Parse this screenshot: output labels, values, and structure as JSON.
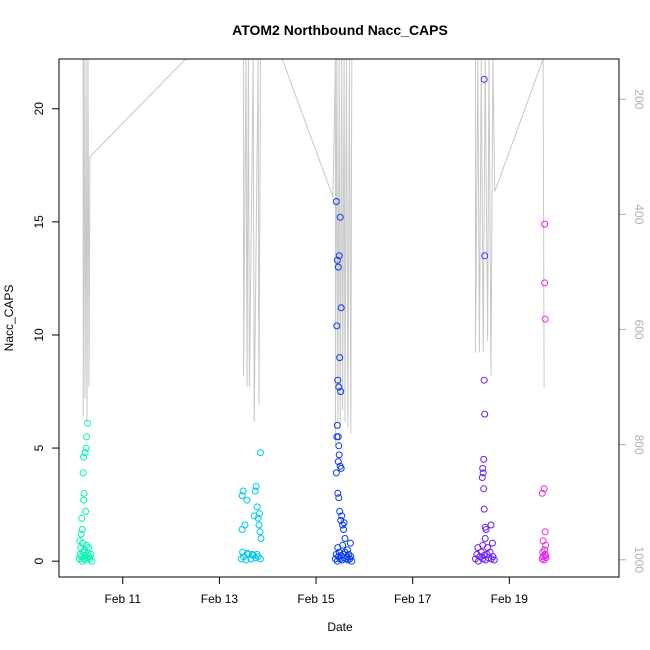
{
  "chart_data": {
    "type": "scatter",
    "title": "ATOM2 Northbound Nacc_CAPS",
    "xlabel": "Date",
    "ylabel": "Nacc_CAPS",
    "x_unit": "days in February",
    "xlim": [
      9.68,
      21.27
    ],
    "ylim": [
      -0.7,
      22.2
    ],
    "x_ticks": [
      {
        "value": 11,
        "label": "Feb 11"
      },
      {
        "value": 13,
        "label": "Feb 13"
      },
      {
        "value": 15,
        "label": "Feb 15"
      },
      {
        "value": 17,
        "label": "Feb 17"
      },
      {
        "value": 19,
        "label": "Feb 19"
      }
    ],
    "y_ticks": [
      0,
      5,
      10,
      15,
      20
    ],
    "y2_label": "",
    "y2_range": [
      1030,
      130
    ],
    "y2_inverted": true,
    "y2_ticks": [
      200,
      400,
      600,
      800,
      1000
    ],
    "depth_trace_color": "#c8c8c8",
    "grid": false,
    "legend": "none",
    "depth_trace": [
      {
        "x": 10.18,
        "y": 130
      },
      {
        "x": 10.18,
        "y": 750
      },
      {
        "x": 10.2,
        "y": 130
      },
      {
        "x": 10.22,
        "y": 720
      },
      {
        "x": 10.24,
        "y": 130
      },
      {
        "x": 10.26,
        "y": 760
      },
      {
        "x": 10.28,
        "y": 130
      },
      {
        "x": 10.3,
        "y": 700
      },
      {
        "x": 10.32,
        "y": 300
      },
      {
        "x": 12.3,
        "y": 130
      },
      {
        "x": 13.5,
        "y": 130
      },
      {
        "x": 13.5,
        "y": 680
      },
      {
        "x": 13.55,
        "y": 130
      },
      {
        "x": 13.57,
        "y": 700
      },
      {
        "x": 13.6,
        "y": 130
      },
      {
        "x": 13.62,
        "y": 700
      },
      {
        "x": 13.7,
        "y": 130
      },
      {
        "x": 13.72,
        "y": 760
      },
      {
        "x": 13.8,
        "y": 130
      },
      {
        "x": 13.82,
        "y": 730
      },
      {
        "x": 13.85,
        "y": 130
      },
      {
        "x": 14.3,
        "y": 130
      },
      {
        "x": 15.35,
        "y": 370
      },
      {
        "x": 15.4,
        "y": 130
      },
      {
        "x": 15.4,
        "y": 800
      },
      {
        "x": 15.43,
        "y": 130
      },
      {
        "x": 15.45,
        "y": 760
      },
      {
        "x": 15.48,
        "y": 130
      },
      {
        "x": 15.5,
        "y": 770
      },
      {
        "x": 15.53,
        "y": 130
      },
      {
        "x": 15.55,
        "y": 740
      },
      {
        "x": 15.58,
        "y": 130
      },
      {
        "x": 15.6,
        "y": 760
      },
      {
        "x": 15.63,
        "y": 130
      },
      {
        "x": 15.66,
        "y": 770
      },
      {
        "x": 15.69,
        "y": 130
      },
      {
        "x": 15.72,
        "y": 780
      },
      {
        "x": 15.74,
        "y": 130
      },
      {
        "x": 18.3,
        "y": 130
      },
      {
        "x": 18.3,
        "y": 640
      },
      {
        "x": 18.35,
        "y": 130
      },
      {
        "x": 18.38,
        "y": 640
      },
      {
        "x": 18.42,
        "y": 130
      },
      {
        "x": 18.46,
        "y": 640
      },
      {
        "x": 18.5,
        "y": 130
      },
      {
        "x": 18.55,
        "y": 620
      },
      {
        "x": 18.58,
        "y": 130
      },
      {
        "x": 18.62,
        "y": 680
      },
      {
        "x": 18.66,
        "y": 130
      },
      {
        "x": 18.7,
        "y": 360
      },
      {
        "x": 19.7,
        "y": 130
      },
      {
        "x": 19.72,
        "y": 700
      }
    ],
    "series": [
      {
        "color": "#00f5b5",
        "points": [
          {
            "x": 10.1,
            "y": 0.1
          },
          {
            "x": 10.12,
            "y": 0.3
          },
          {
            "x": 10.14,
            "y": 0.2
          },
          {
            "x": 10.16,
            "y": 0.0
          },
          {
            "x": 10.18,
            "y": 0.4
          },
          {
            "x": 10.2,
            "y": 0.1
          },
          {
            "x": 10.22,
            "y": 0.25
          },
          {
            "x": 10.24,
            "y": 0.05
          },
          {
            "x": 10.26,
            "y": 0.15
          },
          {
            "x": 10.28,
            "y": 0.35
          },
          {
            "x": 10.3,
            "y": 0.2
          },
          {
            "x": 10.32,
            "y": 0.1
          },
          {
            "x": 10.34,
            "y": 0.3
          },
          {
            "x": 10.36,
            "y": 0.0
          },
          {
            "x": 10.13,
            "y": 0.6
          },
          {
            "x": 10.17,
            "y": 0.8
          },
          {
            "x": 10.21,
            "y": 0.5
          },
          {
            "x": 10.25,
            "y": 0.7
          },
          {
            "x": 10.29,
            "y": 0.6
          },
          {
            "x": 10.11,
            "y": 0.9
          },
          {
            "x": 10.14,
            "y": 1.2
          },
          {
            "x": 10.16,
            "y": 1.4
          },
          {
            "x": 10.19,
            "y": 2.7
          },
          {
            "x": 10.2,
            "y": 3.0
          },
          {
            "x": 10.23,
            "y": 2.2
          },
          {
            "x": 10.18,
            "y": 3.9
          },
          {
            "x": 10.19,
            "y": 4.6
          },
          {
            "x": 10.24,
            "y": 5.0
          },
          {
            "x": 10.25,
            "y": 5.5
          },
          {
            "x": 10.27,
            "y": 6.1
          },
          {
            "x": 10.22,
            "y": 4.8
          },
          {
            "x": 10.15,
            "y": 1.9
          }
        ]
      },
      {
        "color": "#00c8f0",
        "points": [
          {
            "x": 13.45,
            "y": 0.1
          },
          {
            "x": 13.5,
            "y": 0.2
          },
          {
            "x": 13.55,
            "y": 0.05
          },
          {
            "x": 13.6,
            "y": 0.3
          },
          {
            "x": 13.65,
            "y": 0.1
          },
          {
            "x": 13.7,
            "y": 0.25
          },
          {
            "x": 13.75,
            "y": 0.15
          },
          {
            "x": 13.8,
            "y": 0.2
          },
          {
            "x": 13.85,
            "y": 0.1
          },
          {
            "x": 13.48,
            "y": 0.4
          },
          {
            "x": 13.58,
            "y": 0.35
          },
          {
            "x": 13.68,
            "y": 0.3
          },
          {
            "x": 13.78,
            "y": 0.3
          },
          {
            "x": 13.47,
            "y": 1.4
          },
          {
            "x": 13.53,
            "y": 1.6
          },
          {
            "x": 13.47,
            "y": 2.9
          },
          {
            "x": 13.49,
            "y": 3.1
          },
          {
            "x": 13.57,
            "y": 2.7
          },
          {
            "x": 13.72,
            "y": 2.0
          },
          {
            "x": 13.74,
            "y": 3.1
          },
          {
            "x": 13.76,
            "y": 3.3
          },
          {
            "x": 13.78,
            "y": 2.4
          },
          {
            "x": 13.8,
            "y": 1.9
          },
          {
            "x": 13.82,
            "y": 1.6
          },
          {
            "x": 13.83,
            "y": 2.1
          },
          {
            "x": 13.84,
            "y": 1.3
          },
          {
            "x": 13.85,
            "y": 4.8
          },
          {
            "x": 13.86,
            "y": 1.0
          }
        ]
      },
      {
        "color": "#0a3cf0",
        "points": [
          {
            "x": 15.4,
            "y": 0.1
          },
          {
            "x": 15.42,
            "y": 0.3
          },
          {
            "x": 15.44,
            "y": 0.0
          },
          {
            "x": 15.46,
            "y": 0.2
          },
          {
            "x": 15.48,
            "y": 0.4
          },
          {
            "x": 15.5,
            "y": 0.1
          },
          {
            "x": 15.52,
            "y": 0.25
          },
          {
            "x": 15.54,
            "y": 0.05
          },
          {
            "x": 15.56,
            "y": 0.3
          },
          {
            "x": 15.58,
            "y": 0.15
          },
          {
            "x": 15.6,
            "y": 0.4
          },
          {
            "x": 15.62,
            "y": 0.1
          },
          {
            "x": 15.64,
            "y": 0.2
          },
          {
            "x": 15.66,
            "y": 0.05
          },
          {
            "x": 15.68,
            "y": 0.3
          },
          {
            "x": 15.7,
            "y": 0.1
          },
          {
            "x": 15.72,
            "y": 0.2
          },
          {
            "x": 15.74,
            "y": 0.0
          },
          {
            "x": 15.45,
            "y": 0.6
          },
          {
            "x": 15.55,
            "y": 0.7
          },
          {
            "x": 15.65,
            "y": 0.5
          },
          {
            "x": 15.71,
            "y": 0.8
          },
          {
            "x": 15.6,
            "y": 1.0
          },
          {
            "x": 15.42,
            "y": 15.9
          },
          {
            "x": 15.44,
            "y": 13.3
          },
          {
            "x": 15.46,
            "y": 13.0
          },
          {
            "x": 15.48,
            "y": 13.5
          },
          {
            "x": 15.5,
            "y": 15.2
          },
          {
            "x": 15.52,
            "y": 11.2
          },
          {
            "x": 15.43,
            "y": 10.4
          },
          {
            "x": 15.49,
            "y": 9.0
          },
          {
            "x": 15.45,
            "y": 8.0
          },
          {
            "x": 15.47,
            "y": 7.7
          },
          {
            "x": 15.51,
            "y": 7.5
          },
          {
            "x": 15.44,
            "y": 6.0
          },
          {
            "x": 15.46,
            "y": 5.5
          },
          {
            "x": 15.43,
            "y": 5.5
          },
          {
            "x": 15.47,
            "y": 5.1
          },
          {
            "x": 15.48,
            "y": 4.7
          },
          {
            "x": 15.46,
            "y": 4.4
          },
          {
            "x": 15.5,
            "y": 4.2
          },
          {
            "x": 15.52,
            "y": 4.1
          },
          {
            "x": 15.42,
            "y": 3.9
          },
          {
            "x": 15.45,
            "y": 3.0
          },
          {
            "x": 15.47,
            "y": 2.8
          },
          {
            "x": 15.49,
            "y": 2.2
          },
          {
            "x": 15.51,
            "y": 1.8
          },
          {
            "x": 15.53,
            "y": 2.0
          },
          {
            "x": 15.55,
            "y": 1.6
          },
          {
            "x": 15.57,
            "y": 1.4
          },
          {
            "x": 15.58,
            "y": 1.7
          }
        ]
      },
      {
        "color": "#6a1ef5",
        "points": [
          {
            "x": 18.3,
            "y": 0.1
          },
          {
            "x": 18.33,
            "y": 0.3
          },
          {
            "x": 18.36,
            "y": 0.0
          },
          {
            "x": 18.39,
            "y": 0.2
          },
          {
            "x": 18.42,
            "y": 0.4
          },
          {
            "x": 18.45,
            "y": 0.1
          },
          {
            "x": 18.48,
            "y": 0.25
          },
          {
            "x": 18.51,
            "y": 0.05
          },
          {
            "x": 18.54,
            "y": 0.3
          },
          {
            "x": 18.57,
            "y": 0.15
          },
          {
            "x": 18.6,
            "y": 0.4
          },
          {
            "x": 18.63,
            "y": 0.1
          },
          {
            "x": 18.66,
            "y": 0.2
          },
          {
            "x": 18.69,
            "y": 0.05
          },
          {
            "x": 18.35,
            "y": 0.6
          },
          {
            "x": 18.45,
            "y": 0.7
          },
          {
            "x": 18.55,
            "y": 0.6
          },
          {
            "x": 18.65,
            "y": 0.8
          },
          {
            "x": 18.5,
            "y": 1.0
          },
          {
            "x": 18.48,
            "y": 21.3
          },
          {
            "x": 18.49,
            "y": 13.5
          },
          {
            "x": 18.48,
            "y": 8.0
          },
          {
            "x": 18.49,
            "y": 6.5
          },
          {
            "x": 18.47,
            "y": 4.5
          },
          {
            "x": 18.45,
            "y": 4.1
          },
          {
            "x": 18.46,
            "y": 3.9
          },
          {
            "x": 18.44,
            "y": 3.7
          },
          {
            "x": 18.47,
            "y": 3.2
          },
          {
            "x": 18.48,
            "y": 2.3
          },
          {
            "x": 18.5,
            "y": 1.5
          },
          {
            "x": 18.52,
            "y": 1.4
          },
          {
            "x": 18.62,
            "y": 1.6
          }
        ]
      },
      {
        "color": "#e628e6",
        "points": [
          {
            "x": 19.68,
            "y": 0.1
          },
          {
            "x": 19.7,
            "y": 0.2
          },
          {
            "x": 19.72,
            "y": 0.05
          },
          {
            "x": 19.74,
            "y": 0.3
          },
          {
            "x": 19.76,
            "y": 0.15
          },
          {
            "x": 19.69,
            "y": 0.4
          },
          {
            "x": 19.73,
            "y": 0.5
          },
          {
            "x": 19.75,
            "y": 0.25
          },
          {
            "x": 19.73,
            "y": 14.9
          },
          {
            "x": 19.73,
            "y": 12.3
          },
          {
            "x": 19.74,
            "y": 10.7
          },
          {
            "x": 19.68,
            "y": 3.0
          },
          {
            "x": 19.72,
            "y": 3.2
          },
          {
            "x": 19.74,
            "y": 1.3
          },
          {
            "x": 19.7,
            "y": 0.9
          },
          {
            "x": 19.75,
            "y": 0.7
          }
        ]
      }
    ]
  }
}
